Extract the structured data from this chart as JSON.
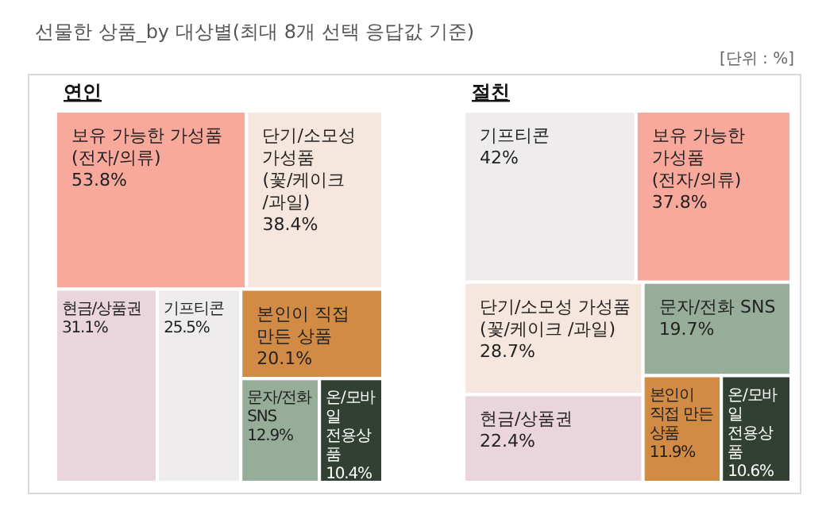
{
  "chart_data": [
    {
      "type": "other",
      "title": "선물한 상품_by 대상별(최대 8개 선택 응답값 기준)",
      "subtitle": "연인",
      "annotations": [
        "[단위 : %]"
      ],
      "categories": [
        "보유 가능한 가성품 (전자/의류)",
        "단기/소모성 가성품 (꽃/케이크 /과일)",
        "현금/상품권",
        "기프티콘",
        "본인이 직접 만든 상품",
        "문자/전화 SNS",
        "온/모바일 전용상품"
      ],
      "values": [
        53.8,
        38.4,
        31.1,
        25.5,
        20.1,
        12.9,
        10.4
      ],
      "value_labels": [
        "53.8%",
        "38.4%",
        "31.1%",
        "25.5%",
        "20.1%",
        "12.9%",
        "10.4%"
      ],
      "colors": [
        "#f8a99c",
        "#f5e6de",
        "#e9d5db",
        "#efecee",
        "#d28b45",
        "#96ad9a",
        "#323f33"
      ]
    },
    {
      "type": "other",
      "subtitle": "절친",
      "categories": [
        "기프티콘",
        "보유 가능한 가성품 (전자/의류)",
        "단기/소모성 가성품 (꽃/케이크 /과일)",
        "현금/상품권",
        "문자/전화 SNS",
        "본인이 직접 만든 상품",
        "온/모바일 전용상품"
      ],
      "values": [
        42,
        37.8,
        28.7,
        22.4,
        19.7,
        11.9,
        10.6
      ],
      "value_labels": [
        "42%",
        "37.8%",
        "28.7%",
        "22.4%",
        "19.7%",
        "11.9%",
        "10.6%"
      ],
      "colors": [
        "#efecee",
        "#f8a99c",
        "#f5e6de",
        "#e9d5db",
        "#96ad9a",
        "#d28b45",
        "#323f33"
      ]
    }
  ]
}
